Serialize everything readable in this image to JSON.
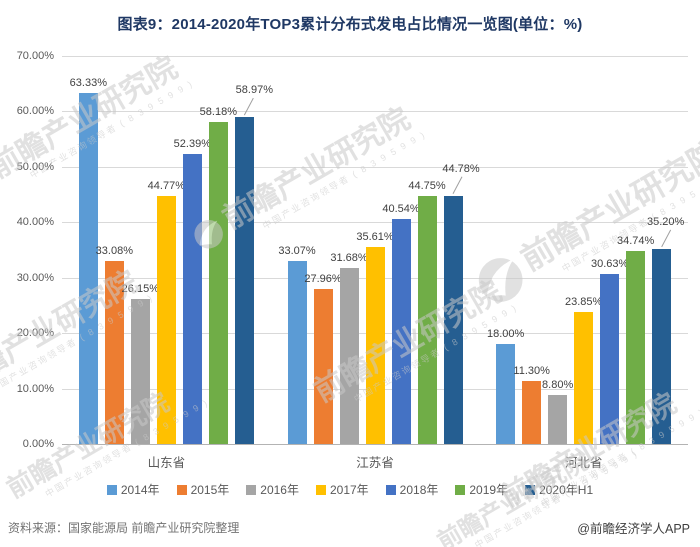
{
  "title": "图表9：2014-2020年TOP3累计分布式发电占比情况一览图(单位：%)",
  "chart_data": {
    "type": "bar",
    "categories": [
      "山东省",
      "江苏省",
      "河北省"
    ],
    "series": [
      {
        "name": "2014年",
        "color": "#5B9BD5",
        "values": [
          63.33,
          33.07,
          18.0
        ]
      },
      {
        "name": "2015年",
        "color": "#ED7D31",
        "values": [
          33.08,
          27.96,
          11.3
        ]
      },
      {
        "name": "2016年",
        "color": "#A5A5A5",
        "values": [
          26.15,
          31.68,
          8.8
        ]
      },
      {
        "name": "2017年",
        "color": "#FFC000",
        "values": [
          44.77,
          35.61,
          23.85
        ]
      },
      {
        "name": "2018年",
        "color": "#4472C4",
        "values": [
          52.39,
          40.54,
          30.63
        ]
      },
      {
        "name": "2019年",
        "color": "#70AD47",
        "values": [
          58.18,
          44.75,
          34.74
        ]
      },
      {
        "name": "2020年H1",
        "color": "#255E91",
        "values": [
          58.97,
          44.78,
          35.2
        ]
      }
    ],
    "ylim": [
      0,
      70
    ],
    "ytick_step": 10,
    "ytick_labels": [
      "0.00%",
      "10.00%",
      "20.00%",
      "30.00%",
      "40.00%",
      "50.00%",
      "60.00%",
      "70.00%"
    ],
    "grid": true,
    "legend_position": "bottom",
    "data_labels": true,
    "label_format": "0.00%"
  },
  "footer": {
    "source": "资料来源：国家能源局 前瞻产业研究院整理",
    "credit": "@前瞻经济学人APP"
  },
  "watermark": {
    "brand": "前瞻产业研究院",
    "tagline": "中国产业咨询领导者",
    "digits": "8 3 9 5 9 9"
  }
}
